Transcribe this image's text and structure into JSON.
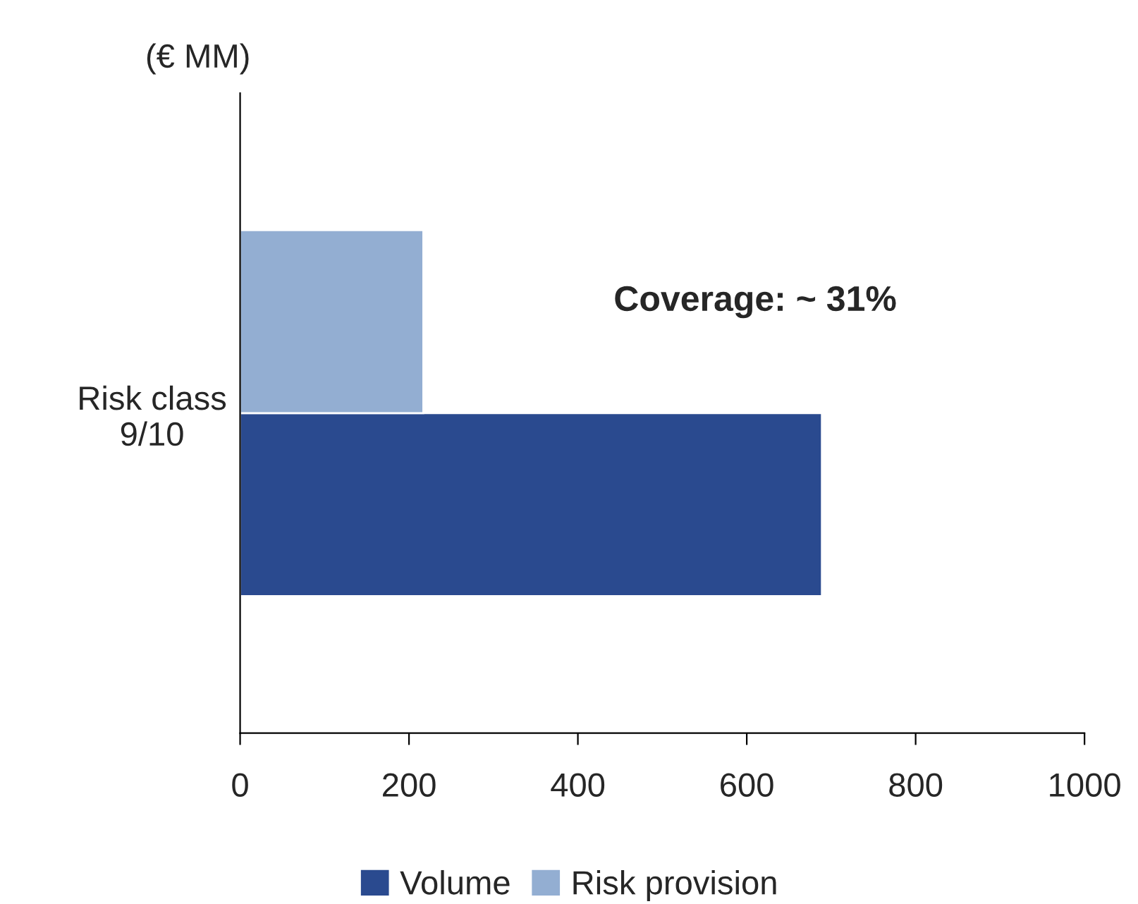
{
  "chart_data": {
    "type": "bar",
    "orientation": "horizontal",
    "categories": [
      "Risk class\n9/10"
    ],
    "series": [
      {
        "name": "Volume",
        "color": "#2a4a8f",
        "values": [
          689
        ]
      },
      {
        "name": "Risk provision",
        "color": "#93aed2",
        "values": [
          217
        ]
      }
    ],
    "xlim": [
      0,
      1000
    ],
    "xticks": [
      0,
      200,
      400,
      600,
      800,
      1000
    ],
    "annotations": [
      "(€ MM)",
      "Coverage: ~ 31%"
    ],
    "legend": "bottom",
    "grid": false
  }
}
